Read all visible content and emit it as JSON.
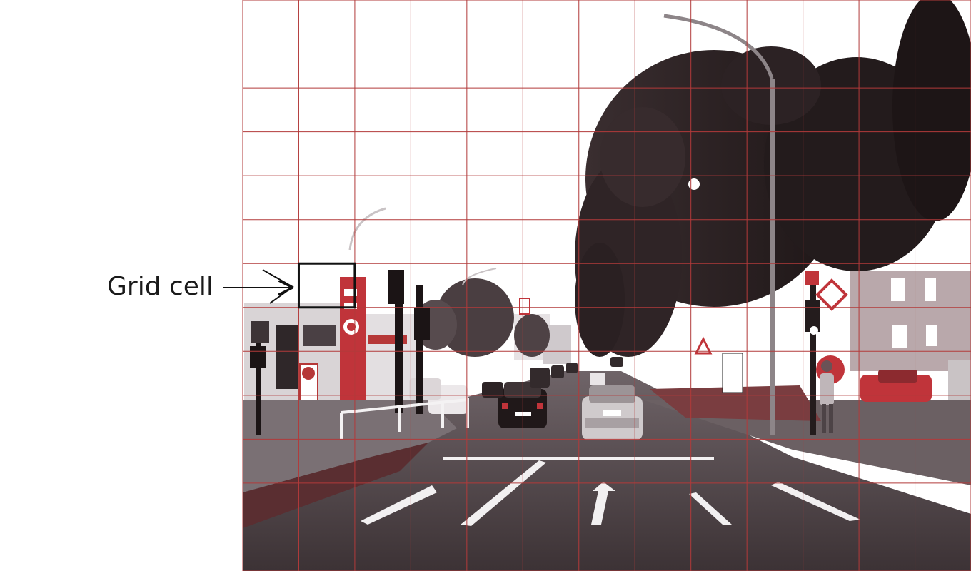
{
  "figure": {
    "callout_label": "Grid cell",
    "grid": {
      "columns": 13,
      "rows": 13,
      "line_color": "#b23a3a",
      "highlight_cell": {
        "column": 1,
        "row": 6
      }
    },
    "photo_alt": "street-scene-photo"
  }
}
